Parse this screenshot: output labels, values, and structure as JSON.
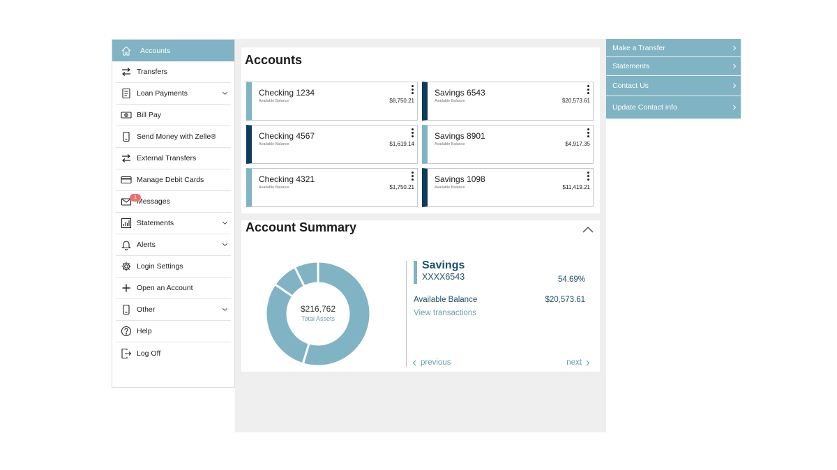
{
  "sidebar": {
    "items": [
      {
        "label": "Accounts",
        "icon": "home-icon",
        "active": true
      },
      {
        "label": "Transfers",
        "icon": "transfer-arrows-icon"
      },
      {
        "label": "Loan Payments",
        "icon": "document-icon",
        "expandable": true
      },
      {
        "label": "Bill Pay",
        "icon": "dollar-bill-icon"
      },
      {
        "label": "Send Money with Zelle®",
        "icon": "phone-icon"
      },
      {
        "label": "External Transfers",
        "icon": "transfer-arrows-icon"
      },
      {
        "label": "Manage Debit Cards",
        "icon": "credit-card-icon"
      },
      {
        "label": "Messages",
        "icon": "envelope-icon",
        "badge": "1"
      },
      {
        "label": "Statements",
        "icon": "bar-chart-icon",
        "expandable": true
      },
      {
        "label": "Alerts",
        "icon": "bell-icon",
        "expandable": true
      },
      {
        "label": "Login Settings",
        "icon": "gear-icon"
      },
      {
        "label": "Open an Account",
        "icon": "plus-icon"
      },
      {
        "label": "Other",
        "icon": "phone-icon",
        "expandable": true
      },
      {
        "label": "Help",
        "icon": "question-icon"
      },
      {
        "label": "Log Off",
        "icon": "logout-icon"
      }
    ]
  },
  "accounts": {
    "title": "Accounts",
    "cards": [
      {
        "name": "Checking 1234",
        "sub": "Available Balance",
        "amount": "$8,750.21",
        "style": "light"
      },
      {
        "name": "Savings 6543",
        "sub": "Available Balance",
        "amount": "$20,573.61",
        "style": "dark"
      },
      {
        "name": "Checking 4567",
        "sub": "Available Balance",
        "amount": "$1,619.14",
        "style": "dark"
      },
      {
        "name": "Savings 8901",
        "sub": "Available Balance",
        "amount": "$4,917.35",
        "style": "light"
      },
      {
        "name": "Checking 4321",
        "sub": "Available Balance",
        "amount": "$1,750.21",
        "style": "light"
      },
      {
        "name": "Savings 1098",
        "sub": "Available Balance",
        "amount": "$11,419.21",
        "style": "dark"
      }
    ]
  },
  "summary": {
    "title": "Account Summary",
    "total": "$216,762",
    "total_label": "Total Assets",
    "donut_color": "#80b3c3",
    "donut_shares": [
      0.5469,
      0.2988,
      0.0807,
      0.0736
    ],
    "detail": {
      "name": "Savings",
      "number": "XXXX6543",
      "percent": "54.69%",
      "balance_label": "Available Balance",
      "balance": "$20,573.61",
      "view_link": "View transactions"
    },
    "previous_label": "previous",
    "next_label": "next"
  },
  "quick_links": [
    {
      "label": "Make a Transfer"
    },
    {
      "label": "Statements"
    },
    {
      "label": "Contact Us"
    },
    {
      "label": "Update Contact info"
    }
  ],
  "colors": {
    "accent": "#80b3c3",
    "dark_accent": "#0f3c5c",
    "link": "#6a9fae",
    "heading": "#1f4f6b"
  }
}
